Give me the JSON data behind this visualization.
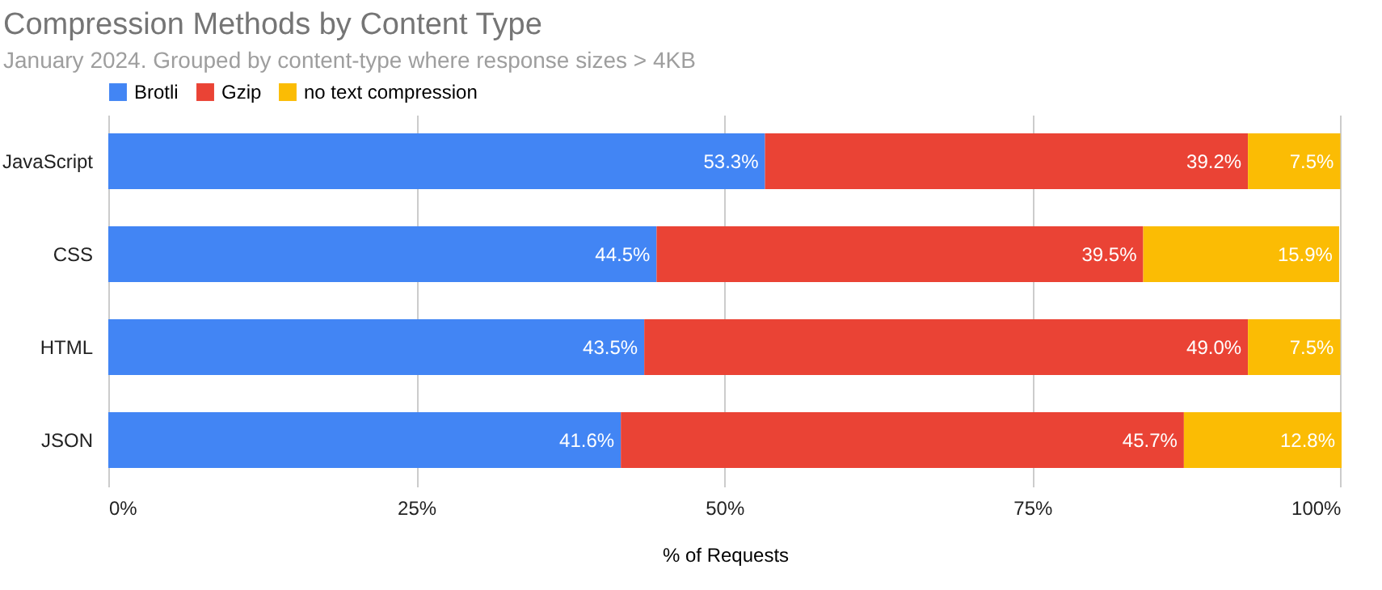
{
  "chart_data": {
    "type": "bar",
    "orientation": "horizontal",
    "stacked": true,
    "title": "Compression Methods by Content Type",
    "subtitle": "January 2024.  Grouped by content-type where response sizes > 4KB",
    "xlabel": "% of Requests",
    "categories": [
      "JavaScript",
      "CSS",
      "HTML",
      "JSON"
    ],
    "series": [
      {
        "name": "Brotli",
        "color": "#4285f4",
        "values": [
          53.3,
          44.5,
          43.5,
          41.6
        ],
        "value_labels": [
          "53.3%",
          "44.5%",
          "43.5%",
          "41.6%"
        ]
      },
      {
        "name": "Gzip",
        "color": "#ea4335",
        "values": [
          39.2,
          39.5,
          49.0,
          45.7
        ],
        "value_labels": [
          "39.2%",
          "39.5%",
          "49.0%",
          "45.7%"
        ]
      },
      {
        "name": "no text compression",
        "color": "#fbbc04",
        "values": [
          7.5,
          15.9,
          7.5,
          12.8
        ],
        "value_labels": [
          "7.5%",
          "15.9%",
          "7.5%",
          "12.8%"
        ]
      }
    ],
    "xlim": [
      0,
      100.1
    ],
    "xticks": [
      {
        "value": 0,
        "label": "0%"
      },
      {
        "value": 25,
        "label": "25%"
      },
      {
        "value": 50,
        "label": "50%"
      },
      {
        "value": 75,
        "label": "75%"
      },
      {
        "value": 100,
        "label": "100%"
      }
    ],
    "grid": "x",
    "legend": "top"
  }
}
